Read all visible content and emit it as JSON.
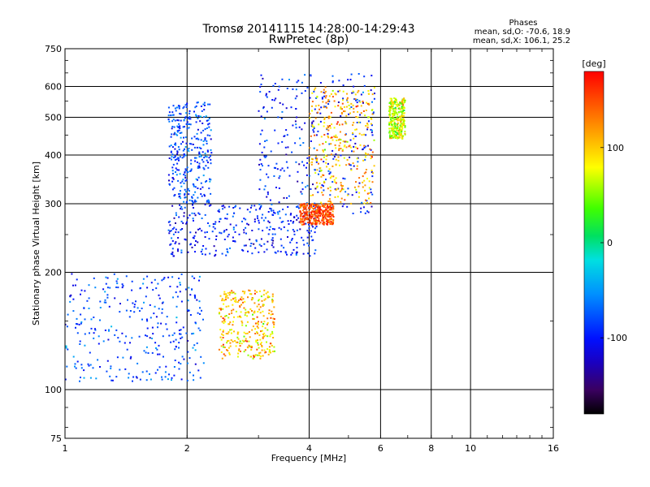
{
  "header": {
    "title_line1": "Tromsø 20141115 14:28:00-14:29:43",
    "title_line2": "RwPretec (8p)"
  },
  "stats": {
    "heading": "Phases",
    "line_o": "mean, sd,O: -70.6, 18.9",
    "line_x": "mean, sd,X: 106.1, 25.2"
  },
  "chart_data": {
    "type": "scatter",
    "title": "Tromsø 20141115 14:28:00-14:29:43",
    "subtitle": "RwPretec (8p)",
    "xlabel": "Frequency [MHz]",
    "ylabel": "Stationary phase Virtual Height [km]",
    "x_scale": "log",
    "y_scale": "log",
    "xlim": [
      1,
      16
    ],
    "ylim": [
      75,
      750
    ],
    "x_ticks": [
      1,
      2,
      4,
      6,
      8,
      10,
      16
    ],
    "x_tick_labels": [
      "1",
      "2",
      "4",
      "6",
      "8",
      "10",
      "16"
    ],
    "y_ticks": [
      75,
      100,
      200,
      300,
      400,
      500,
      600,
      750
    ],
    "y_tick_labels": [
      "75",
      "100",
      "200",
      "300",
      "400",
      "500",
      "600",
      "750"
    ],
    "grid": true,
    "colorbar": {
      "label": "[deg]",
      "range": [
        -180,
        180
      ],
      "ticks": [
        100,
        0,
        -100
      ],
      "tick_labels": [
        "100",
        "0",
        "-100"
      ],
      "colormap": "rainbow (black at -180, red at +180)"
    },
    "clusters": [
      {
        "name": "",
        "freq_range": [
          1.0,
          2.2
        ],
        "height_range": [
          105,
          200
        ],
        "phase_mean": -80,
        "phase_sd": 20
      },
      {
        "name": "",
        "freq_range": [
          2.4,
          3.3
        ],
        "height_range": [
          120,
          180
        ],
        "phase_mean": 100,
        "phase_sd": 30
      },
      {
        "name": "",
        "freq_range": [
          1.8,
          4.2
        ],
        "height_range": [
          220,
          300
        ],
        "phase_mean": -95,
        "phase_sd": 20
      },
      {
        "name": "",
        "freq_range": [
          1.8,
          2.3
        ],
        "height_range": [
          300,
          550
        ],
        "phase_mean": -80,
        "phase_sd": 20
      },
      {
        "name": "",
        "freq_range": [
          3.0,
          5.8
        ],
        "height_range": [
          280,
          650
        ],
        "phase_mean": -95,
        "phase_sd": 20
      },
      {
        "name": "",
        "freq_range": [
          4.0,
          5.8
        ],
        "height_range": [
          300,
          600
        ],
        "phase_mean": 110,
        "phase_sd": 30
      },
      {
        "name": "",
        "freq_range": [
          3.8,
          4.6
        ],
        "height_range": [
          265,
          300
        ],
        "phase_mean": 150,
        "phase_sd": 20
      },
      {
        "name": "",
        "freq_range": [
          6.3,
          6.9
        ],
        "height_range": [
          440,
          560
        ],
        "phase_mean": 70,
        "phase_sd": 30
      }
    ]
  }
}
